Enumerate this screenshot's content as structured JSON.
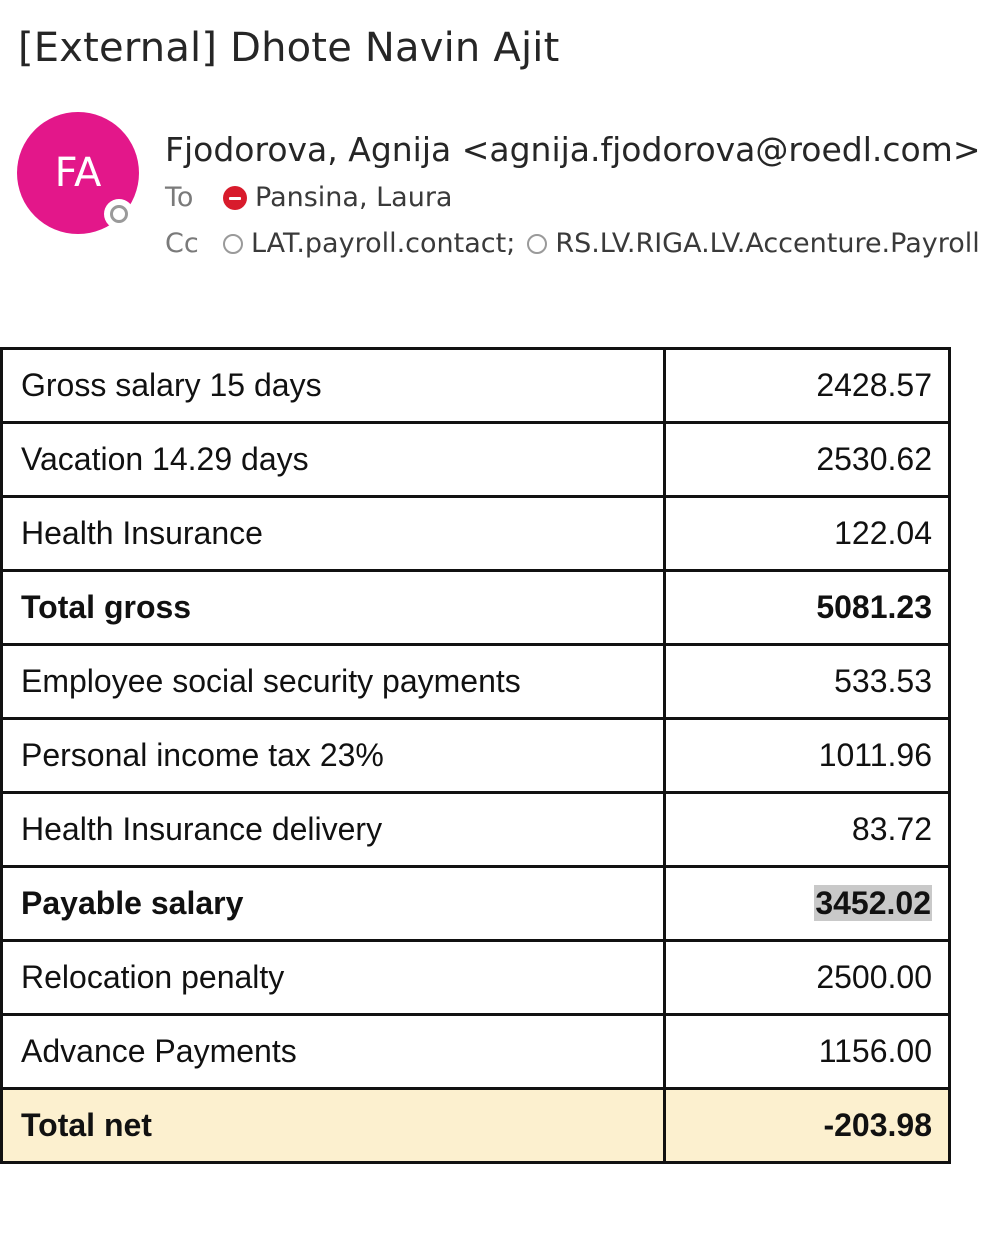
{
  "email": {
    "subject": "[External] Dhote Navin Ajit",
    "avatar_initials": "FA",
    "avatar_color": "#e3178a",
    "sender": "Fjodorova, Agnija <agnija.fjodorova@roedl.com>",
    "to_label": "To",
    "to": [
      {
        "name": "Pansina, Laura",
        "status": "do-not-disturb"
      }
    ],
    "cc_label": "Cc",
    "cc": [
      {
        "name": "LAT.payroll.contact;",
        "status": "offline"
      },
      {
        "name": "RS.LV.RIGA.LV.Accenture.Payroll",
        "status": "offline"
      }
    ]
  },
  "payroll": {
    "rows": [
      {
        "label": "Gross salary 15 days",
        "value": "2428.57",
        "bold": false
      },
      {
        "label": "Vacation 14.29 days",
        "value": "2530.62",
        "bold": false
      },
      {
        "label": "Health Insurance",
        "value": "122.04",
        "bold": false
      },
      {
        "label": "Total gross",
        "value": "5081.23",
        "bold": true
      },
      {
        "label": "Employee social security payments",
        "value": "533.53",
        "bold": false
      },
      {
        "label": "Personal income tax 23%",
        "value": "1011.96",
        "bold": false
      },
      {
        "label": "Health Insurance delivery",
        "value": "83.72",
        "bold": false
      },
      {
        "label": "Payable salary",
        "value": "3452.02",
        "bold": true,
        "highlighted": true
      },
      {
        "label": "Relocation penalty",
        "value": "2500.00",
        "bold": false
      },
      {
        "label": "Advance Payments",
        "value": "1156.00",
        "bold": false
      },
      {
        "label": "Total net",
        "value": "-203.98",
        "bold": true,
        "row_color": "#fcf0cf"
      }
    ]
  }
}
